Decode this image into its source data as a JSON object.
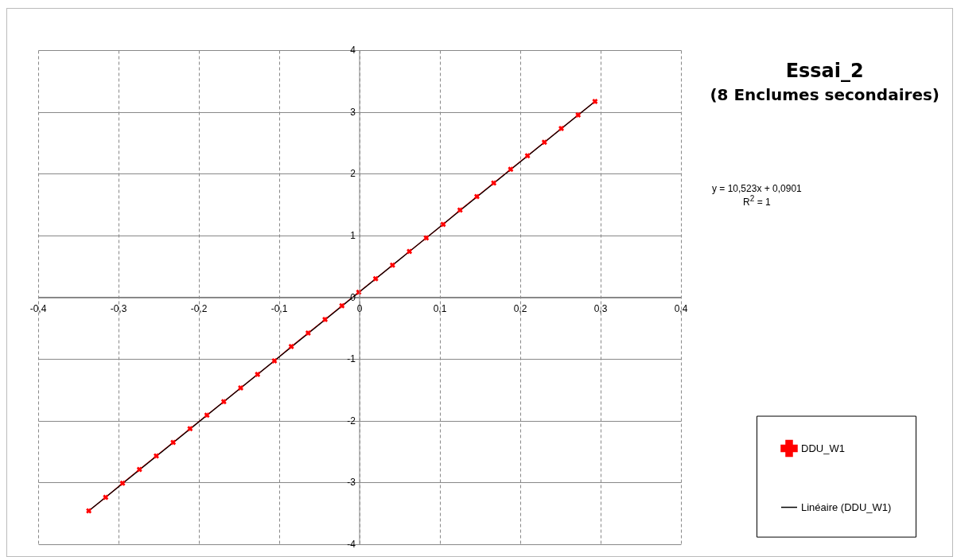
{
  "chart_data": {
    "type": "line",
    "title": "Essai_2",
    "subtitle": "(8 Enclumes secondaires)",
    "annotations": [
      "y = 10,523x + 0,0901",
      "R$^{2}$ = 1"
    ],
    "x": [
      -0.337,
      -0.316,
      -0.295,
      -0.274,
      -0.253,
      -0.232,
      -0.211,
      -0.19,
      -0.169,
      -0.148,
      -0.127,
      -0.106,
      -0.085,
      -0.064,
      -0.043,
      -0.022,
      -0.001,
      0.02,
      0.041,
      0.062,
      0.083,
      0.104,
      0.125,
      0.146,
      0.167,
      0.188,
      0.209,
      0.23,
      0.251,
      0.272,
      0.293
    ],
    "series": [
      {
        "name": "DDU_W1",
        "color": "#ff0000",
        "marker": "cross",
        "values": [
          -3.46,
          -3.24,
          -3.01,
          -2.79,
          -2.57,
          -2.35,
          -2.13,
          -1.91,
          -1.69,
          -1.47,
          -1.25,
          -1.03,
          -0.8,
          -0.58,
          -0.36,
          -0.14,
          0.08,
          0.3,
          0.52,
          0.74,
          0.96,
          1.18,
          1.41,
          1.63,
          1.85,
          2.07,
          2.29,
          2.51,
          2.73,
          2.95,
          3.17
        ]
      },
      {
        "name": "Linéaire (DDU_W1)",
        "color": "#000000",
        "type": "line",
        "marker": "none",
        "x": [
          -0.337,
          0.293
        ],
        "values": [
          -3.46,
          3.17
        ]
      }
    ],
    "xlim": [
      -0.4,
      0.4
    ],
    "xticks": [
      {
        "value": -0.4,
        "label": "-0,4"
      },
      {
        "value": -0.3,
        "label": "-0,3"
      },
      {
        "value": -0.2,
        "label": "-0,2"
      },
      {
        "value": -0.1,
        "label": "-0,1"
      },
      0,
      {
        "value": 0.1,
        "label": "0,1"
      },
      {
        "value": 0.2,
        "label": "0,2"
      },
      {
        "value": 0.3,
        "label": "0,3"
      },
      {
        "value": 0.4,
        "label": "0,4"
      }
    ],
    "ylim": [
      -4,
      4
    ],
    "yticks": [
      -4,
      -3,
      -2,
      -1,
      0,
      1,
      2,
      3,
      4
    ],
    "grid": true,
    "legend": "right",
    "line_style": "solid"
  }
}
